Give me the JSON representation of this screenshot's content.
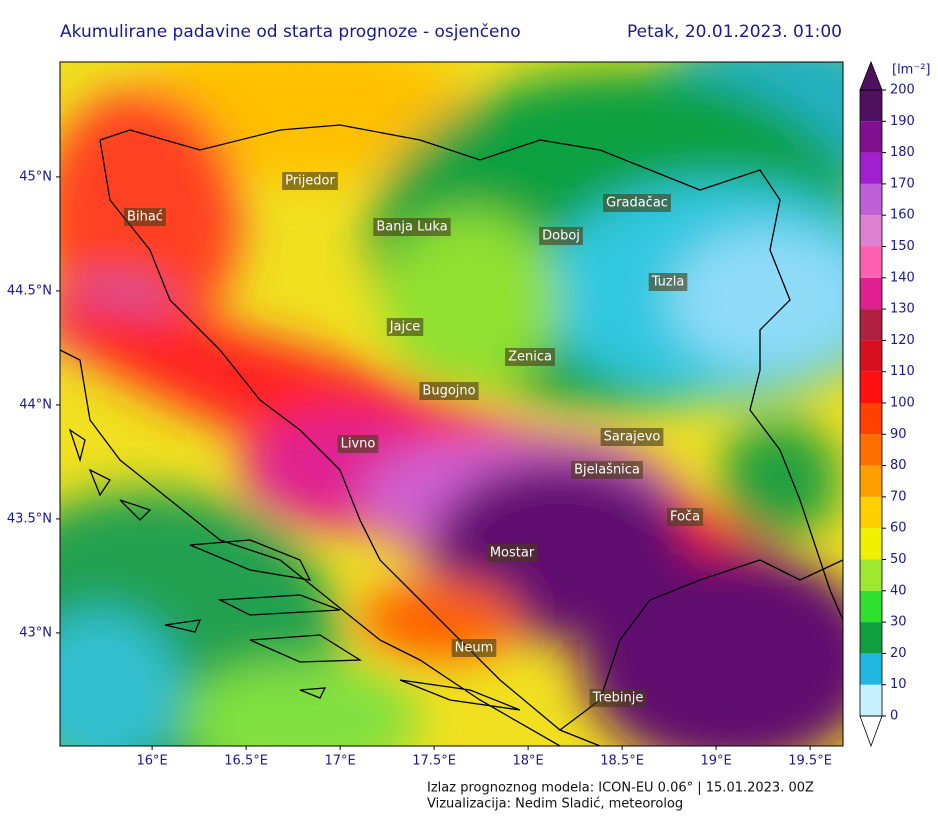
{
  "header": {
    "title": "Akumulirane padavine od starta prognoze - osjenčeno",
    "date": "Petak, 20.01.2023. 01:00"
  },
  "map": {
    "xlim": [
      15.51,
      19.675
    ],
    "ylim": [
      42.504,
      45.504
    ],
    "xticks": [
      {
        "value": 16,
        "label": "16°E"
      },
      {
        "value": 16.5,
        "label": "16.5°E"
      },
      {
        "value": 17,
        "label": "17°E"
      },
      {
        "value": 17.5,
        "label": "17.5°E"
      },
      {
        "value": 18,
        "label": "18°E"
      },
      {
        "value": 18.5,
        "label": "18.5°E"
      },
      {
        "value": 19,
        "label": "19°E"
      },
      {
        "value": 19.5,
        "label": "19.5°E"
      }
    ],
    "yticks": [
      {
        "value": 43,
        "label": "43°N"
      },
      {
        "value": 43.5,
        "label": "43.5°N"
      },
      {
        "value": 44,
        "label": "44°N"
      },
      {
        "value": 44.5,
        "label": "44.5°N"
      },
      {
        "value": 45,
        "label": "45°N"
      }
    ],
    "cities": [
      "Prijedor",
      "Bihać",
      "Banja Luka",
      "Doboj",
      "Gradačac",
      "Tuzla",
      "Jajce",
      "Zenica",
      "Bugojno",
      "Livno",
      "Sarajevo",
      "Bjelašnica",
      "Foča",
      "Mostar",
      "Neum",
      "Trebinje"
    ]
  },
  "colorbar": {
    "unit": "[lm⁻²]",
    "ticks": [
      0,
      10,
      20,
      30,
      40,
      50,
      60,
      70,
      80,
      90,
      100,
      110,
      120,
      130,
      140,
      150,
      160,
      170,
      180,
      190,
      200
    ],
    "colors": [
      "#c8f0ff",
      "#20b8e0",
      "#10a040",
      "#30e030",
      "#a0e830",
      "#f0f000",
      "#ffd000",
      "#ffa000",
      "#ff7000",
      "#ff4000",
      "#ff1010",
      "#d81020",
      "#b02040",
      "#e02090",
      "#ff60b0",
      "#e080d0",
      "#c060d8",
      "#a020d0",
      "#801090",
      "#501060"
    ]
  },
  "footer": {
    "line1": "Izlaz prognoznog modela: ICON-EU 0.06° | 15.01.2023. 00Z",
    "line2": "Vizualizacija: Nedim Sladić, meteorolog"
  }
}
